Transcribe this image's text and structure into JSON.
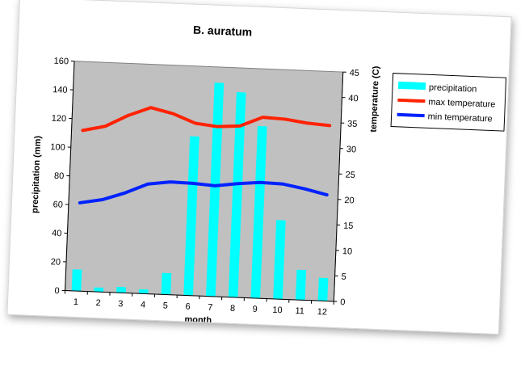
{
  "chart_data": {
    "type": "bar",
    "title": "B. auratum",
    "xlabel": "month",
    "ylabel": "precipitation (mm)",
    "y2label": "temperature (C)",
    "categories": [
      "1",
      "2",
      "3",
      "4",
      "5",
      "6",
      "7",
      "8",
      "9",
      "10",
      "11",
      "12"
    ],
    "ylim": [
      0,
      160
    ],
    "yticks": [
      "0",
      "20",
      "40",
      "60",
      "80",
      "100",
      "120",
      "140",
      "160"
    ],
    "y2lim": [
      0,
      45
    ],
    "y2ticks": [
      "0",
      "5",
      "10",
      "15",
      "20",
      "25",
      "30",
      "35",
      "40",
      "45"
    ],
    "grid": false,
    "legend_position": "right",
    "series": [
      {
        "name": "precipitation",
        "kind": "bar",
        "axis": "left",
        "color": "#00FFFF",
        "values": [
          15,
          3,
          4,
          3,
          15,
          111,
          149,
          143,
          120,
          55,
          21,
          16
        ]
      },
      {
        "name": "max temperature",
        "kind": "line",
        "axis": "right",
        "color": "#FF2200",
        "values": [
          31.5,
          32.5,
          34.8,
          36.5,
          35.5,
          33.8,
          33.3,
          33.6,
          35.5,
          35.3,
          34.7,
          34.4
        ]
      },
      {
        "name": "min temperature",
        "kind": "line",
        "axis": "right",
        "color": "#0022FF",
        "values": [
          17.3,
          18.1,
          19.6,
          21.5,
          22.1,
          22.0,
          21.7,
          22.3,
          22.7,
          22.6,
          21.8,
          20.8
        ]
      }
    ],
    "plot_background": "#C0C0C0"
  }
}
